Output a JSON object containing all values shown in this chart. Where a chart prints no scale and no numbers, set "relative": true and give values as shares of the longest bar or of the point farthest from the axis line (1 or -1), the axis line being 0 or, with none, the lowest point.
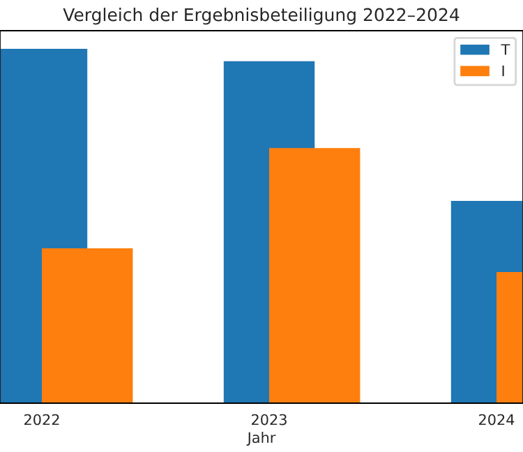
{
  "chart_data": {
    "type": "bar",
    "title": "Vergleich der Ergebnisbeteiligung 2022–2024",
    "xlabel": "Jahr",
    "categories": [
      "2022",
      "2023",
      "2024"
    ],
    "relative": true,
    "legend": "top right",
    "series": [
      {
        "name": "T",
        "color": "#1f77b4",
        "values": [
          1,
          0.965,
          0.571
        ]
      },
      {
        "name": "I",
        "color": "#ff7f0e",
        "values": [
          0.437,
          0.72,
          0.37
        ]
      }
    ]
  }
}
